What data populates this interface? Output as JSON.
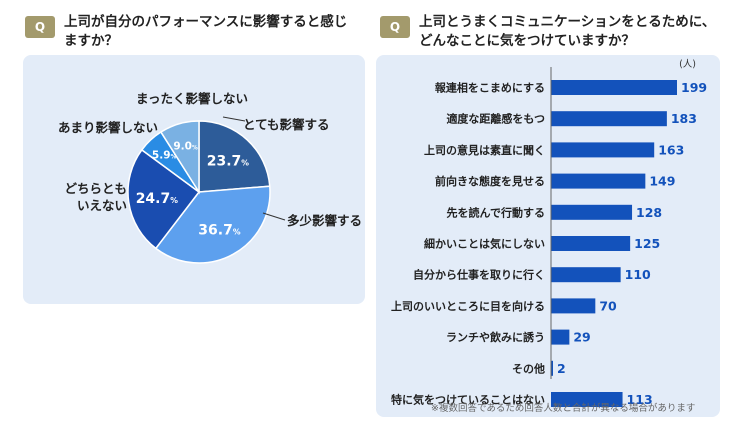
{
  "left": {
    "badge": "Q",
    "title_line1": "上司が自分のパフォーマンスに影響すると感じ",
    "title_line2": "ますか？",
    "chart_data": {
      "type": "pie",
      "unit": "%",
      "slices": [
        {
          "label": "とても影響する",
          "value": 23.7,
          "color": "#2d5c99"
        },
        {
          "label": "多少影響する",
          "value": 36.7,
          "color": "#5da0ee"
        },
        {
          "label": "どちらともいえない",
          "value": 24.7,
          "color": "#1a4db0"
        },
        {
          "label": "あまり影響しない",
          "value": 5.9,
          "color": "#2a8ce4"
        },
        {
          "label": "まったく影響しない",
          "value": 9.0,
          "color": "#7ab1e3"
        }
      ]
    }
  },
  "right": {
    "badge": "Q",
    "title_line1": "上司とうまくコミュニケーションをとるために、",
    "title_line2": "どんなことに気をつけていますか？",
    "unit_label": "(人)",
    "note": "※複数回答であるため回答人数と合計が異なる場合があります",
    "chart_data": {
      "type": "bar",
      "orientation": "horizontal",
      "unit": "人",
      "color": "#1352bb",
      "categories": [
        "報連相をこまめにする",
        "適度な距離感をもつ",
        "上司の意見は素直に聞く",
        "前向きな態度を見せる",
        "先を読んで行動する",
        "細かいことは気にしない",
        "自分から仕事を取りに行く",
        "上司のいいところに目を向ける",
        "ランチや飲みに誘う",
        "その他",
        "特に気をつけていることはない"
      ],
      "values": [
        199,
        183,
        163,
        149,
        128,
        125,
        110,
        70,
        29,
        2,
        113
      ],
      "xlim": [
        0,
        199
      ]
    }
  }
}
